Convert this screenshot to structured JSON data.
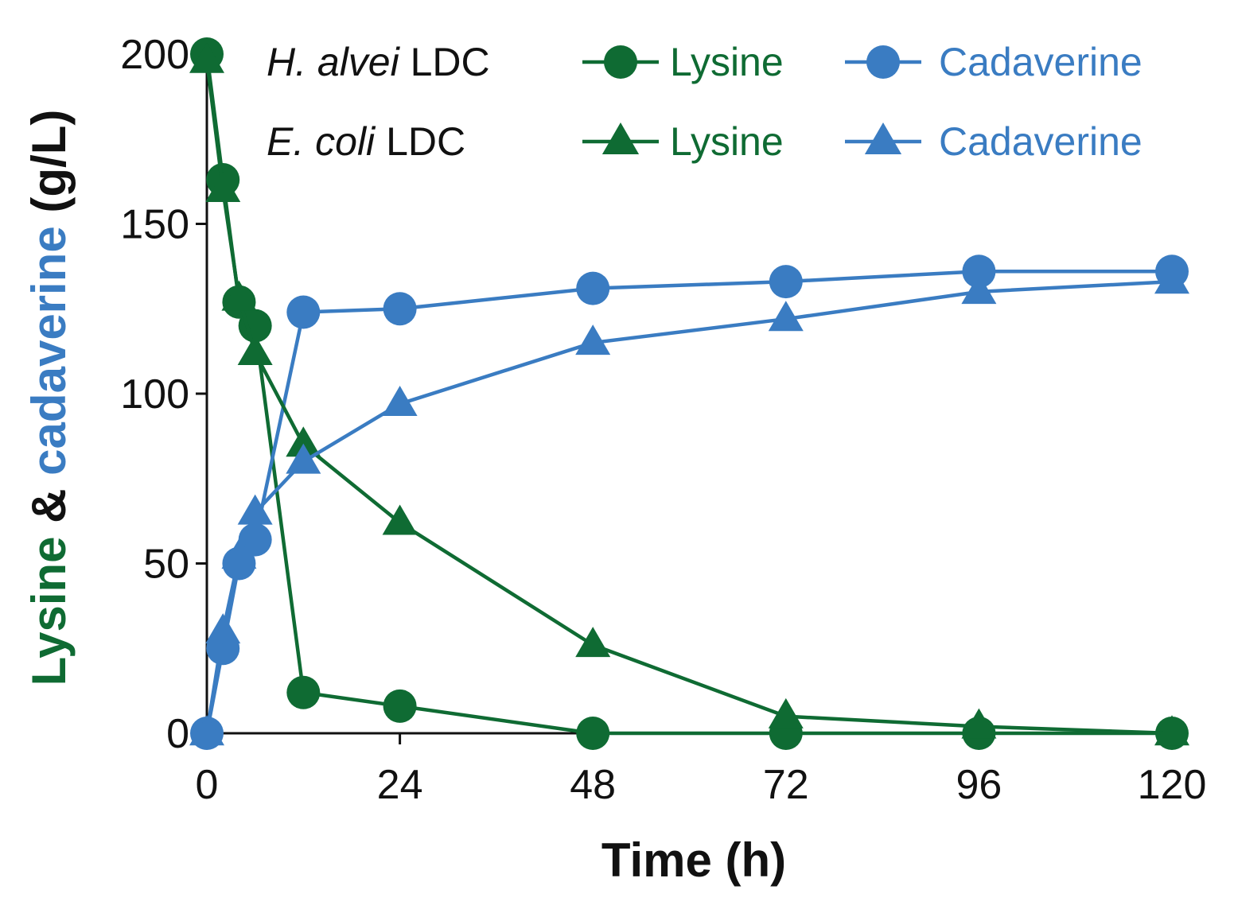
{
  "colors": {
    "lysine": "#0f6b33",
    "cadaverine": "#3a7cc2",
    "axis": "#111111"
  },
  "chart_data": {
    "type": "line",
    "title": "",
    "xlabel": "Time (h)",
    "ylabel_parts": [
      {
        "text": "Lysine",
        "color_key": "lysine"
      },
      {
        "text": " & ",
        "color_key": "axis"
      },
      {
        "text": "cadaverine",
        "color_key": "cadaverine"
      },
      {
        "text": " (g/L)",
        "color_key": "axis"
      }
    ],
    "xlim": [
      0,
      120
    ],
    "ylim": [
      0,
      200
    ],
    "xticks": [
      0,
      24,
      48,
      72,
      96,
      120
    ],
    "yticks": [
      0,
      50,
      100,
      150,
      200
    ],
    "legend": {
      "placement": "top",
      "row_labels": [
        {
          "italic": "H. alvei",
          "rest": " LDC"
        },
        {
          "italic": "E. coli",
          "rest": " LDC"
        }
      ],
      "column_labels": [
        "Lysine",
        "Cadaverine"
      ]
    },
    "series": [
      {
        "name": "Lysine",
        "group": "H. alvei LDC",
        "marker": "circle",
        "color_key": "lysine",
        "x": [
          0,
          2,
          4,
          6,
          12,
          24,
          48,
          72,
          96,
          120
        ],
        "y": [
          200,
          163,
          127,
          120,
          12,
          8,
          0,
          0,
          0,
          0
        ]
      },
      {
        "name": "Cadaverine",
        "group": "H. alvei LDC",
        "marker": "circle",
        "color_key": "cadaverine",
        "x": [
          0,
          2,
          4,
          6,
          12,
          24,
          48,
          72,
          96,
          120
        ],
        "y": [
          0,
          25,
          50,
          57,
          124,
          125,
          131,
          133,
          136,
          136
        ]
      },
      {
        "name": "Lysine",
        "group": "E. coli LDC",
        "marker": "triangle",
        "color_key": "lysine",
        "x": [
          0,
          2,
          4,
          6,
          12,
          24,
          48,
          72,
          96,
          120
        ],
        "y": [
          198,
          160,
          128,
          112,
          85,
          62,
          26,
          5,
          2,
          0
        ]
      },
      {
        "name": "Cadaverine",
        "group": "E. coli LDC",
        "marker": "triangle",
        "color_key": "cadaverine",
        "x": [
          0,
          2,
          4,
          6,
          12,
          24,
          48,
          72,
          96,
          120
        ],
        "y": [
          0,
          30,
          52,
          65,
          80,
          97,
          115,
          122,
          130,
          133
        ]
      }
    ]
  }
}
